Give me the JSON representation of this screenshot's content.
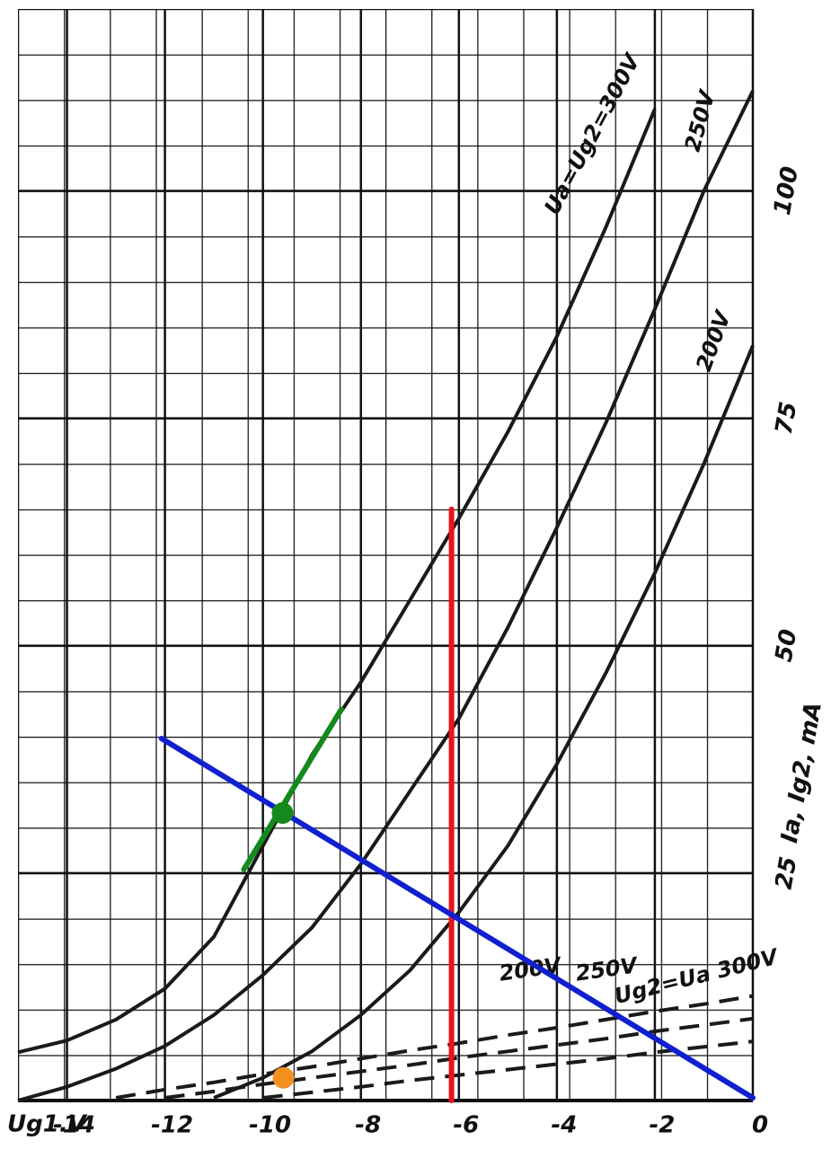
{
  "chart_data": {
    "type": "line",
    "xlabel": "Ug1.V",
    "ylabel": "Ia, Ig2, mA",
    "xlim": [
      -15,
      0
    ],
    "ylim": [
      0,
      120
    ],
    "xticks": [
      -14,
      -12,
      -10,
      -8,
      -6,
      -4,
      -2,
      0
    ],
    "yticks": [
      25,
      50,
      75,
      100
    ],
    "grid": true,
    "x": [
      -15,
      -14,
      -13,
      -12,
      -11,
      -10,
      -9,
      -8,
      -7,
      -6,
      -5,
      -4,
      -3,
      -2,
      -1,
      0
    ],
    "series": [
      {
        "name": "Ua=Ug2=300V",
        "color": "#1a1a1a",
        "style": "solid",
        "values": [
          5.3,
          6.6,
          8.9,
          12.3,
          18,
          28,
          38,
          46,
          55,
          64,
          73.5,
          84,
          96,
          109,
          null,
          null
        ]
      },
      {
        "name": "250V",
        "color": "#1a1a1a",
        "style": "solid",
        "values": [
          0,
          1.5,
          3.5,
          6,
          9.4,
          13.8,
          19,
          26,
          34,
          42,
          52,
          63,
          74.5,
          87,
          100,
          111
        ]
      },
      {
        "name": "200V",
        "color": "#1a1a1a",
        "style": "solid",
        "values": [
          null,
          null,
          null,
          null,
          0.3,
          2.5,
          5.4,
          9.4,
          14.3,
          20.7,
          28,
          37,
          47,
          58,
          70,
          83
        ]
      },
      {
        "name": "200V",
        "color": "#1a1a1a",
        "style": "dashed",
        "values": [
          null,
          null,
          null,
          null,
          null,
          0.3,
          0.9,
          1.5,
          2.2,
          2.8,
          3.4,
          4,
          4.6,
          5.3,
          5.9,
          6.5
        ]
      },
      {
        "name": "250V",
        "color": "#1a1a1a",
        "style": "dashed",
        "values": [
          null,
          null,
          null,
          0.3,
          1,
          1.8,
          2.5,
          3.2,
          3.9,
          4.7,
          5.4,
          6.1,
          6.8,
          7.6,
          8.3,
          9
        ]
      },
      {
        "name": "Ug2=Ua 300V",
        "color": "#1a1a1a",
        "style": "dashed",
        "values": [
          null,
          null,
          0.3,
          1.2,
          2,
          2.9,
          3.7,
          4.6,
          5.5,
          6.3,
          7.2,
          8,
          8.9,
          9.8,
          10.6,
          11.5
        ]
      }
    ],
    "overlays": [
      {
        "kind": "line",
        "color": "#e8141b",
        "x": [
          -6.15,
          -6.15
        ],
        "y": [
          0,
          65
        ]
      },
      {
        "kind": "line",
        "color": "#1020d0",
        "x": [
          -12.07,
          0
        ],
        "y": [
          39.8,
          0.3
        ]
      },
      {
        "kind": "line",
        "color": "#138a1a",
        "x": [
          -10.39,
          -8.4
        ],
        "y": [
          25.4,
          43
        ]
      },
      {
        "kind": "dot",
        "color": "#138a1a",
        "x": -9.6,
        "y": 31.6
      },
      {
        "kind": "dot",
        "color": "#f39020",
        "x": -9.58,
        "y": 2.5
      }
    ]
  }
}
